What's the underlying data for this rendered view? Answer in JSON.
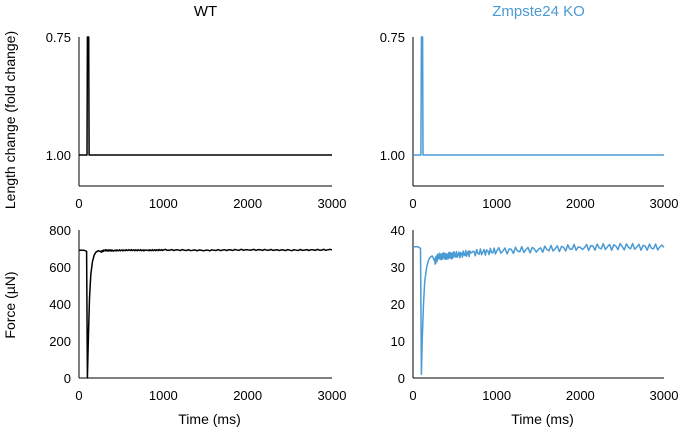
{
  "figure": {
    "row_labels": [
      "Length change (fold change)",
      "Force (µN)"
    ]
  },
  "colors": {
    "wt": "#000000",
    "ko": "#4a9ad4"
  },
  "chart_data": [
    {
      "type": "line",
      "title": "WT",
      "xlabel": "",
      "xlim": [
        0,
        3000
      ],
      "xticks": [
        "0",
        "1000",
        "2000",
        "3000"
      ],
      "ylim": [
        1.0,
        0.75
      ],
      "yticks": [
        "0.75",
        "1.00"
      ],
      "series": [
        {
          "color": "#000000",
          "x": [
            0,
            95,
            100,
            105,
            110,
            115,
            120,
            3000
          ],
          "y": [
            1.0,
            1.0,
            0.75,
            0.75,
            0.75,
            0.75,
            1.0,
            1.0
          ]
        }
      ]
    },
    {
      "type": "line",
      "title": "Zmpste24 KO",
      "xlabel": "",
      "xlim": [
        0,
        3000
      ],
      "xticks": [
        "0",
        "1000",
        "2000",
        "3000"
      ],
      "ylim": [
        1.0,
        0.75
      ],
      "yticks": [
        "0.75",
        "1.00"
      ],
      "series": [
        {
          "color": "#4a9ad4",
          "x": [
            0,
            95,
            100,
            105,
            110,
            115,
            120,
            3000
          ],
          "y": [
            1.0,
            1.0,
            0.75,
            0.75,
            0.75,
            0.75,
            1.0,
            1.0
          ]
        }
      ]
    },
    {
      "type": "line",
      "title": "",
      "xlabel": "Time (ms)",
      "xlim": [
        0,
        3000
      ],
      "xticks": [
        "0",
        "1000",
        "2000",
        "3000"
      ],
      "ylim": [
        0,
        800
      ],
      "yticks": [
        "0",
        "200",
        "400",
        "600",
        "800"
      ],
      "series": [
        {
          "color": "#000000",
          "x": [
            0,
            60,
            90,
            100,
            110,
            125,
            140,
            160,
            180,
            200,
            230,
            260,
            300,
            400,
            600,
            800,
            1000,
            1500,
            2000,
            2500,
            3000
          ],
          "y": [
            690,
            690,
            685,
            0,
            200,
            430,
            560,
            630,
            665,
            680,
            688,
            682,
            690,
            689,
            691,
            690,
            692,
            690,
            693,
            691,
            693
          ]
        }
      ]
    },
    {
      "type": "line",
      "title": "",
      "xlabel": "Time (ms)",
      "xlim": [
        0,
        3000
      ],
      "xticks": [
        "0",
        "1000",
        "2000",
        "3000"
      ],
      "ylim": [
        0,
        40
      ],
      "yticks": [
        "0",
        "10",
        "20",
        "30",
        "40"
      ],
      "series": [
        {
          "color": "#4a9ad4",
          "x": [
            0,
            60,
            90,
            100,
            110,
            125,
            140,
            160,
            180,
            200,
            230,
            260,
            300,
            400,
            500,
            700,
            1000,
            1500,
            2000,
            2500,
            3000
          ],
          "y": [
            35.5,
            35.5,
            35,
            1,
            10,
            20,
            26,
            29.5,
            31.5,
            32.5,
            33,
            31.5,
            32.8,
            33,
            33.2,
            33.8,
            34.3,
            34.8,
            35.3,
            35.5,
            35.3
          ]
        }
      ]
    }
  ]
}
